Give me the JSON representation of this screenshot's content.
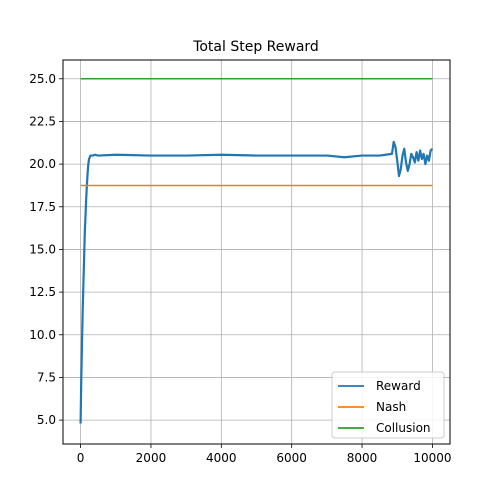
{
  "chart_data": {
    "type": "line",
    "title": "Total Step Reward",
    "xlabel": "",
    "ylabel": "",
    "xlim": [
      -500,
      10500
    ],
    "ylim": [
      3.6,
      26.1
    ],
    "x_ticks": [
      0,
      2000,
      4000,
      6000,
      8000,
      10000
    ],
    "y_ticks": [
      5.0,
      7.5,
      10.0,
      12.5,
      15.0,
      17.5,
      20.0,
      22.5,
      25.0
    ],
    "x_tick_labels": [
      "0",
      "2000",
      "4000",
      "6000",
      "8000",
      "10000"
    ],
    "y_tick_labels": [
      "5.0",
      "7.5",
      "10.0",
      "12.5",
      "15.0",
      "17.5",
      "20.0",
      "22.5",
      "25.0"
    ],
    "grid": true,
    "legend_position": "lower-right",
    "series": [
      {
        "name": "Reward",
        "color": "#1f77b4",
        "x": [
          0,
          20,
          40,
          60,
          80,
          100,
          120,
          140,
          160,
          180,
          200,
          220,
          240,
          260,
          280,
          300,
          350,
          400,
          500,
          1000,
          2000,
          3000,
          4000,
          5000,
          6000,
          7000,
          7500,
          8000,
          8500,
          8850,
          8900,
          8950,
          9000,
          9050,
          9100,
          9150,
          9200,
          9250,
          9300,
          9350,
          9400,
          9450,
          9500,
          9550,
          9600,
          9650,
          9700,
          9750,
          9800,
          9850,
          9900,
          9950,
          10000
        ],
        "y": [
          4.8,
          7.5,
          9.5,
          11.5,
          13.0,
          14.5,
          16.0,
          17.0,
          18.0,
          18.8,
          19.5,
          20.0,
          20.3,
          20.4,
          20.5,
          20.5,
          20.5,
          20.55,
          20.5,
          20.55,
          20.5,
          20.5,
          20.55,
          20.5,
          20.5,
          20.5,
          20.4,
          20.5,
          20.5,
          20.6,
          21.3,
          21.0,
          20.2,
          19.3,
          19.7,
          20.5,
          20.9,
          20.1,
          19.6,
          20.0,
          20.6,
          20.4,
          20.1,
          20.7,
          20.2,
          20.8,
          20.3,
          20.6,
          20.0,
          20.5,
          20.2,
          20.8,
          20.9
        ]
      },
      {
        "name": "Nash",
        "color": "#ff7f0e",
        "x": [
          0,
          10000
        ],
        "y": [
          18.75,
          18.75
        ]
      },
      {
        "name": "Collusion",
        "color": "#2ca02c",
        "x": [
          0,
          10000
        ],
        "y": [
          25.0,
          25.0
        ]
      }
    ]
  }
}
